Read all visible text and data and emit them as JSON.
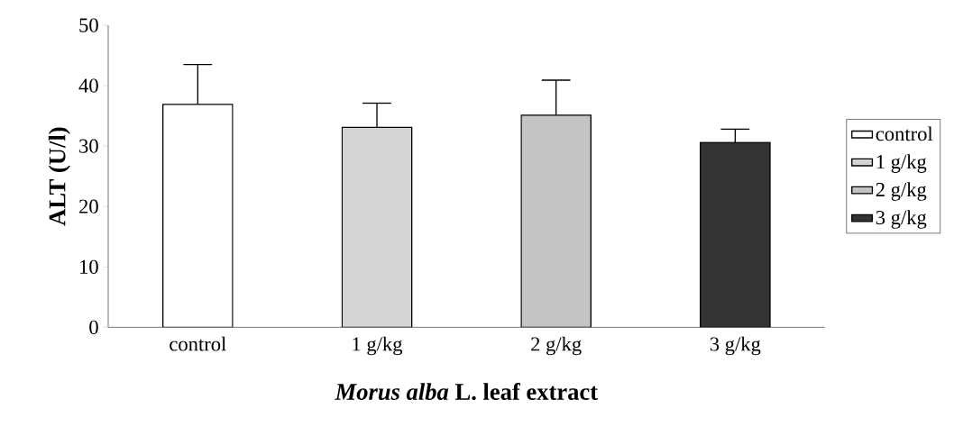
{
  "chart_data": {
    "type": "bar",
    "xlabel": "*Morus alba* L. leaf extract",
    "ylabel": "ALT (U/l)",
    "categories": [
      "control",
      "1 g/kg",
      "2 g/kg",
      "3 g/kg"
    ],
    "series": [
      {
        "name": "control",
        "color": "#ffffff",
        "values": [
          36.9,
          null,
          null,
          null
        ],
        "errors": [
          [
            36.9,
            43.5
          ],
          null,
          null,
          null
        ]
      },
      {
        "name": "1 g/kg",
        "color": "#d4d4d4",
        "values": [
          null,
          33.1,
          null,
          null
        ],
        "errors": [
          null,
          [
            33.1,
            37.1
          ],
          null,
          null
        ]
      },
      {
        "name": "2 g/kg",
        "color": "#c4c4c4",
        "values": [
          null,
          null,
          35.1,
          null
        ],
        "errors": [
          null,
          null,
          [
            35.1,
            40.9
          ],
          null
        ]
      },
      {
        "name": "3 g/kg",
        "color": "#333333",
        "values": [
          null,
          null,
          null,
          30.6
        ],
        "errors": [
          null,
          null,
          null,
          [
            30.6,
            32.8
          ]
        ]
      }
    ],
    "ylim": [
      0,
      50
    ],
    "yticks": [
      0,
      10,
      20,
      30,
      40,
      50
    ],
    "grid": false,
    "legend": "right"
  }
}
